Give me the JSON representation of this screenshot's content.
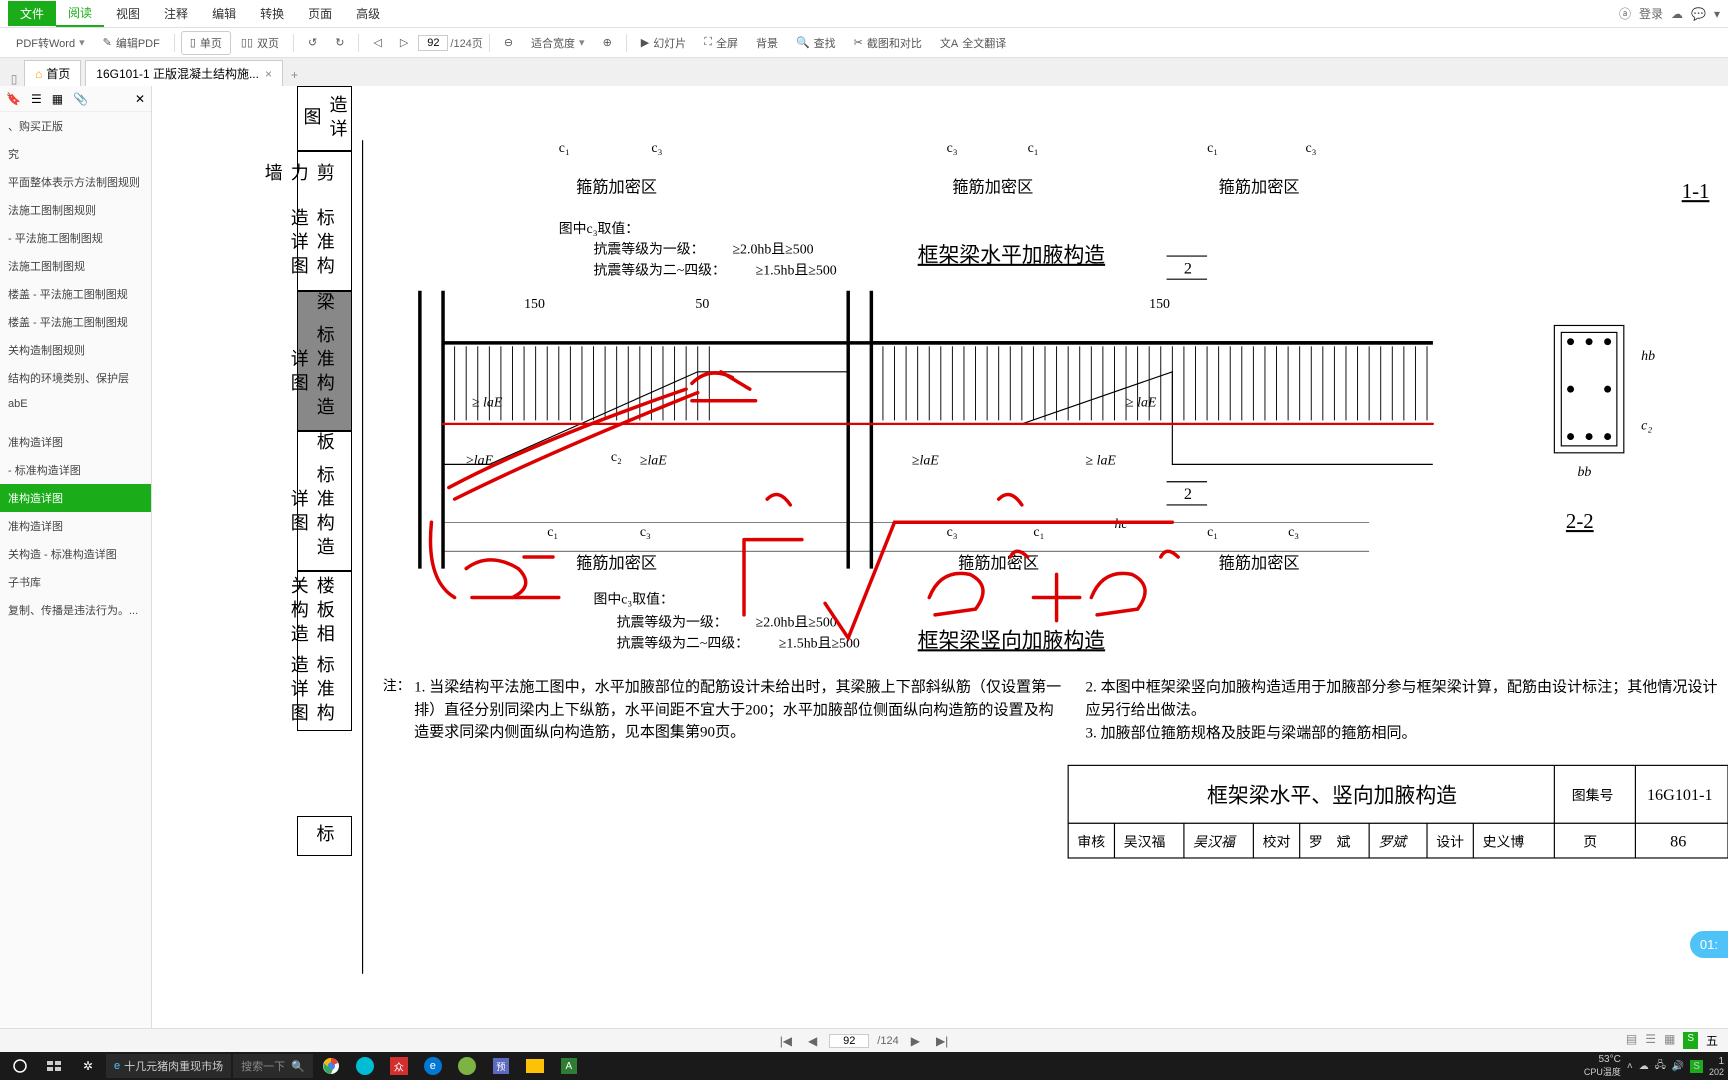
{
  "menu": {
    "file": "文件",
    "read": "阅读",
    "view": "视图",
    "annotate": "注释",
    "edit": "编辑",
    "convert": "转换",
    "page": "页面",
    "advanced": "高级",
    "login": "登录"
  },
  "toolbar": {
    "pdf_to_word": "PDF转Word",
    "edit_pdf": "编辑PDF",
    "single_page": "单页",
    "double_page": "双页",
    "page_current": "92",
    "page_total": "/124页",
    "fit_width": "适合宽度",
    "slideshow": "幻灯片",
    "fullscreen": "全屏",
    "background": "背景",
    "find": "查找",
    "screenshot": "截图和对比",
    "translate": "全文翻译"
  },
  "tabs": {
    "home": "首页",
    "doc_title": "16G101-1 正版混凝土结构施..."
  },
  "sidebar": {
    "items": [
      "、购买正版",
      "究",
      "平面整体表示方法制图规则",
      "法施工图制图规则",
      "- 平法施工图制图规",
      "法施工图制图规",
      "楼盖 - 平法施工图制图规",
      "楼盖 - 平法施工图制图规",
      "关构造制图规则",
      "结构的环境类别、保护层",
      "abE",
      "",
      "准构造详图",
      "- 标准构造详图",
      "准构造详图",
      "准构造详图",
      "关构造 - 标准构造详图",
      "子书库",
      "复制、传播是违法行为。..."
    ],
    "selected_index": 14
  },
  "page_labels": {
    "l1a": "造详图",
    "l2a": "剪力墙",
    "l2b": "标准构造详图",
    "l3a": "梁",
    "l3b": "标准构造详图",
    "l4a": "板",
    "l4b": "标准构造详图",
    "l5a": "楼板相关构造",
    "l5b": "标准构造详图",
    "l6": "标"
  },
  "drawing": {
    "dims": {
      "c1": "c₁",
      "c3": "c₃",
      "hc": "hc",
      "hb": "hb",
      "bb": "bb",
      "c2": "c₂",
      "fifty": "50",
      "fifty2": "150",
      "lae": "≥ laE"
    },
    "labels": {
      "stirrup_zone": "箍筋加密区",
      "c3_note": "图中c₃取值：",
      "seismic1": "抗震等级为一级：",
      "seismic1_val": "≥2.0hb且≥500",
      "seismic2": "抗震等级为二~四级：",
      "seismic2_val": "≥1.5hb且≥500",
      "horiz_title": "框架梁水平加腋构造",
      "vert_title": "框架梁竖向加腋构造",
      "section_11": "1-1",
      "section_22": "2-2",
      "section_2": "2"
    },
    "notes": {
      "prefix": "注：",
      "n1": "1. 当梁结构平法施工图中，水平加腋部位的配筋设计未给出时，其梁腋上下部斜纵筋（仅设置第一排）直径分别同梁内上下纵筋，水平间距不宜大于200；水平加腋部位侧面纵向构造筋的设置及构造要求同梁内侧面纵向构造筋，见本图集第90页。",
      "n2": "2. 本图中框架梁竖向加腋构造适用于加腋部分参与框架梁计算，配筋由设计标注；其他情况设计应另行给出做法。",
      "n3": "3. 加腋部位箍筋规格及肢距与梁端部的箍筋相同。"
    },
    "title_block": {
      "main_title": "框架梁水平、竖向加腋构造",
      "atlas_label": "图集号",
      "atlas_no": "16G101-1",
      "review": "审核",
      "reviewer": "吴汉福",
      "reviewer2": "吴汉福",
      "proof": "校对",
      "proofer": "罗　斌",
      "design": "设计",
      "designer": "史义博",
      "page_label": "页",
      "page_no": "86"
    }
  },
  "page_nav": {
    "current": "92",
    "total": "/124"
  },
  "taskbar": {
    "browser_text": "十几元猪肉重现市场",
    "search_placeholder": "搜索一下",
    "temp": "53°C",
    "temp_label": "CPU温度",
    "ime": "五",
    "time": "1",
    "date": "202"
  },
  "timer": "01:"
}
